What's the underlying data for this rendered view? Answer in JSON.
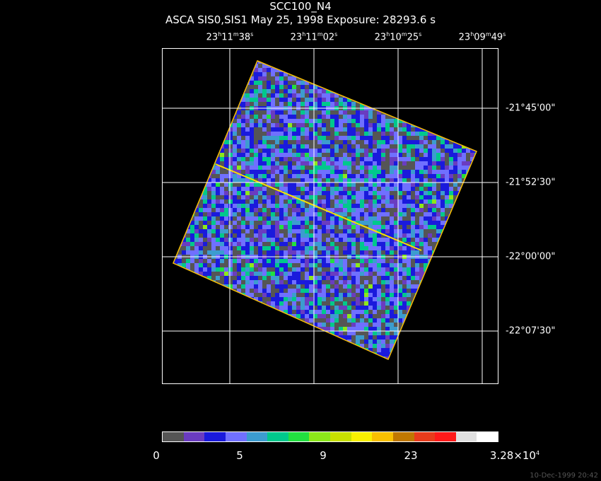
{
  "title": "SCC100_N4",
  "subtitle": "ASCA SIS0,SIS1 May 25, 1998 Exposure: 28293.6 s",
  "ra_ticks": [
    {
      "h": "23",
      "m": "11",
      "s": "38"
    },
    {
      "h": "23",
      "m": "11",
      "s": "02"
    },
    {
      "h": "23",
      "m": "10",
      "s": "25"
    },
    {
      "h": "23",
      "m": "09",
      "s": "49"
    }
  ],
  "dec_ticks": [
    "-21°45'00\"",
    "-21°52'30\"",
    "-22°00'00\"",
    "-22°07'30\""
  ],
  "colorbar": {
    "colors": [
      "#555555",
      "#6a3cc0",
      "#1a1adc",
      "#7070ff",
      "#3c9ccf",
      "#00c88c",
      "#22e040",
      "#8ce81a",
      "#c8e000",
      "#f8f000",
      "#f8c000",
      "#c07800",
      "#e83c1c",
      "#ff1a1a",
      "#e0e0e0",
      "#ffffff"
    ],
    "labels": [
      "0",
      "5",
      "9",
      "23"
    ],
    "max_label": "3.28×10",
    "max_exp": "4"
  },
  "stamp": "10-Dec-1999 20:42"
}
